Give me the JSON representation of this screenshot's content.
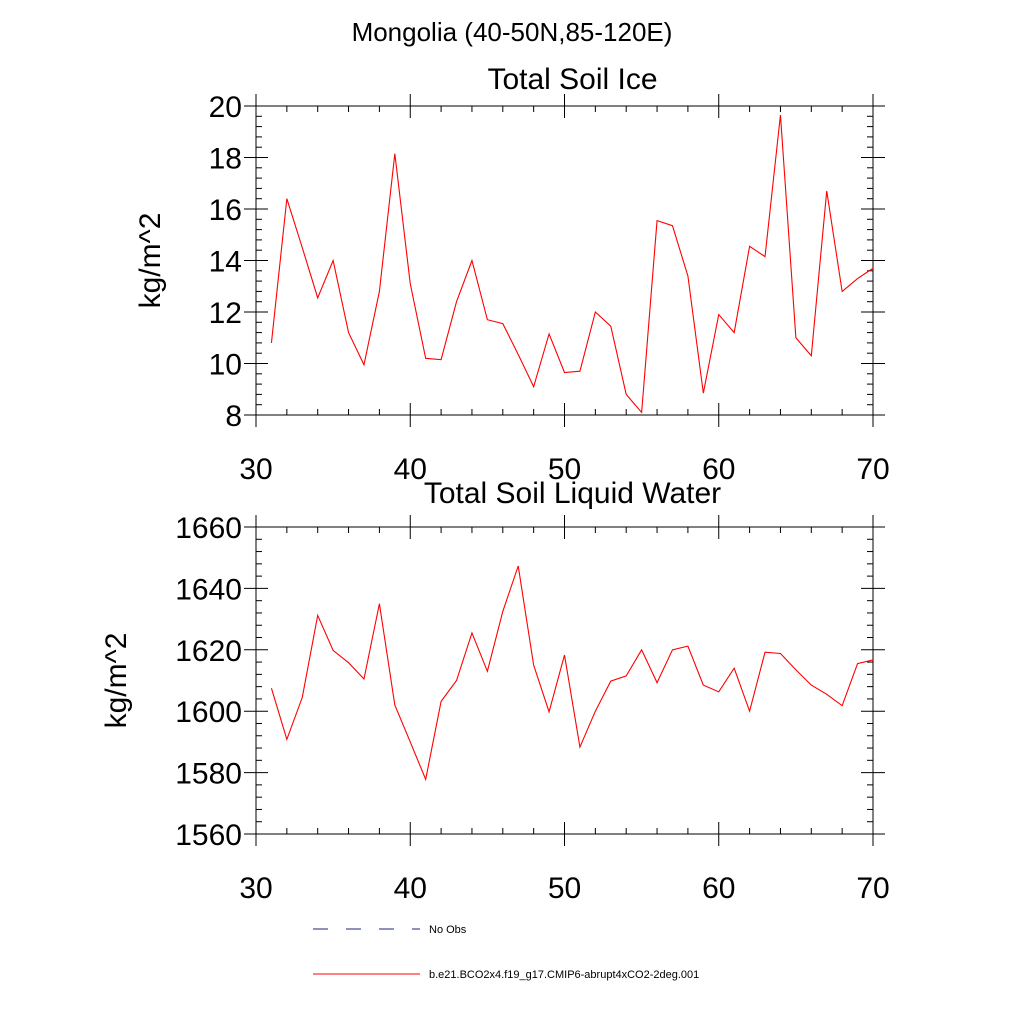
{
  "figure": {
    "suptitle": "Mongolia (40-50N,85-120E)"
  },
  "colors": {
    "model_line": "#ff0000",
    "obs_line": "#1a237e",
    "axes": "#000000",
    "background": "#ffffff"
  },
  "legend": {
    "entries": [
      {
        "label": "No Obs",
        "style": "dashed",
        "color": "#1a237e"
      },
      {
        "label": "b.e21.BCO2x4.f19_g17.CMIP6-abrupt4xCO2-2deg.001",
        "style": "solid",
        "color": "#ff0000"
      }
    ]
  },
  "chart_data": [
    {
      "type": "line",
      "title": "Total Soil Ice",
      "xlabel": "",
      "ylabel": "kg/m^2",
      "xlim": [
        30,
        70
      ],
      "ylim": [
        8,
        20
      ],
      "xticks": [
        30,
        40,
        50,
        60,
        70
      ],
      "yticks": [
        8,
        10,
        12,
        14,
        16,
        18,
        20
      ],
      "series": [
        {
          "name": "b.e21.BCO2x4.f19_g17.CMIP6-abrupt4xCO2-2deg.001",
          "x": [
            31,
            32,
            33,
            34,
            35,
            36,
            37,
            38,
            39,
            40,
            41,
            42,
            43,
            44,
            45,
            46,
            47,
            48,
            49,
            50,
            51,
            52,
            53,
            54,
            55,
            56,
            57,
            58,
            59,
            60,
            61,
            62,
            63,
            64,
            65,
            66,
            67,
            68,
            69,
            70
          ],
          "values": [
            10.8,
            16.4,
            14.5,
            12.55,
            14.0,
            11.2,
            9.95,
            12.8,
            18.15,
            13.1,
            10.2,
            10.15,
            12.4,
            14.0,
            11.7,
            11.55,
            10.35,
            9.1,
            11.15,
            9.65,
            9.7,
            12.0,
            11.45,
            8.8,
            8.1,
            15.55,
            15.35,
            13.4,
            8.85,
            11.9,
            11.2,
            14.55,
            14.15,
            19.65,
            11.0,
            10.3,
            16.7,
            12.8,
            13.3,
            13.7
          ]
        }
      ]
    },
    {
      "type": "line",
      "title": "Total Soil Liquid Water",
      "xlabel": "",
      "ylabel": "kg/m^2",
      "xlim": [
        30,
        70
      ],
      "ylim": [
        1560,
        1660
      ],
      "xticks": [
        30,
        40,
        50,
        60,
        70
      ],
      "yticks": [
        1560,
        1580,
        1600,
        1620,
        1640,
        1660
      ],
      "series": [
        {
          "name": "b.e21.BCO2x4.f19_g17.CMIP6-abrupt4xCO2-2deg.001",
          "x": [
            31,
            32,
            33,
            34,
            35,
            36,
            37,
            38,
            39,
            40,
            41,
            42,
            43,
            44,
            45,
            46,
            47,
            48,
            49,
            50,
            51,
            52,
            53,
            54,
            55,
            56,
            57,
            58,
            59,
            60,
            61,
            62,
            63,
            64,
            65,
            66,
            67,
            68,
            69,
            70
          ],
          "values": [
            1607.5,
            1590.8,
            1604.5,
            1631.2,
            1619.8,
            1615.8,
            1610.5,
            1635.0,
            1602.0,
            1590.0,
            1577.8,
            1603.2,
            1610.0,
            1625.5,
            1613.0,
            1632.5,
            1647.3,
            1615.0,
            1599.8,
            1618.3,
            1588.3,
            1600.0,
            1609.8,
            1611.5,
            1620.0,
            1609.3,
            1620.0,
            1621.2,
            1608.5,
            1606.3,
            1614.0,
            1600.0,
            1619.2,
            1618.8,
            1613.5,
            1608.5,
            1605.5,
            1601.8,
            1615.5,
            1616.7
          ]
        }
      ]
    }
  ]
}
